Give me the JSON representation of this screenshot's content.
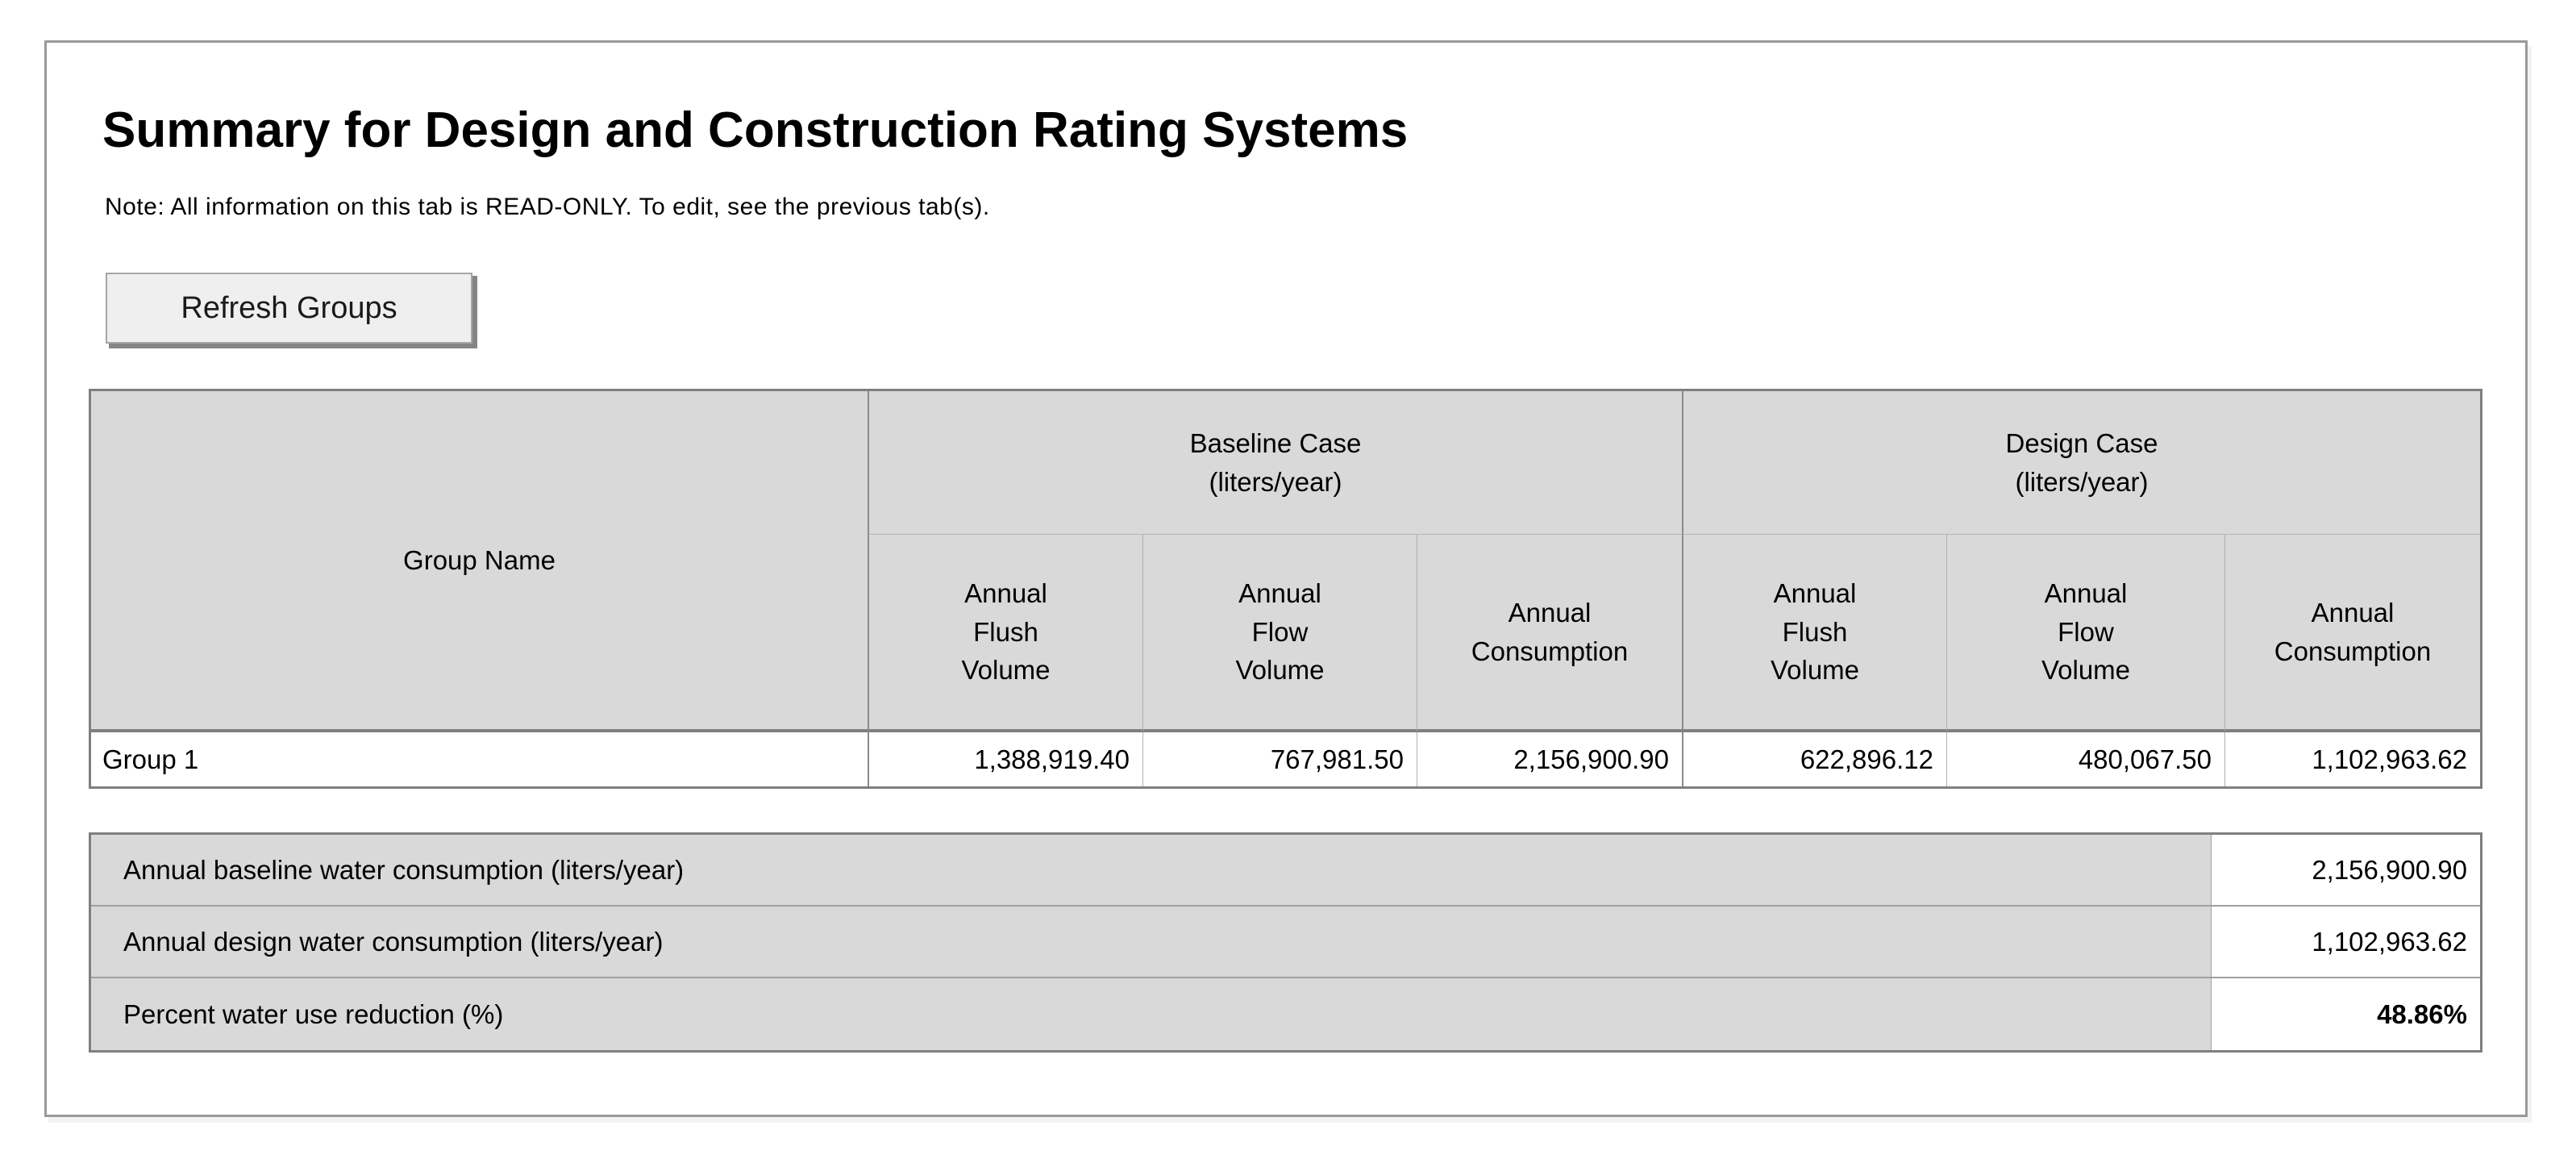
{
  "page": {
    "title": "Summary for Design and Construction Rating Systems",
    "note": "Note: All information on this tab is READ-ONLY. To edit, see the previous tab(s).",
    "refresh_button_label": "Refresh Groups"
  },
  "main_table": {
    "corner_header": "Group Name",
    "baseline_group": {
      "title": "Baseline Case\n(liters/year)",
      "columns": [
        "Annual\nFlush\nVolume",
        "Annual\nFlow\nVolume",
        "Annual\nConsumption"
      ]
    },
    "design_group": {
      "title": "Design Case\n(liters/year)",
      "columns": [
        "Annual\nFlush\nVolume",
        "Annual\nFlow\nVolume",
        "Annual\nConsumption"
      ]
    },
    "rows": [
      {
        "group_name": "Group 1",
        "baseline": {
          "annual_flush_volume": "1,388,919.40",
          "annual_flow_volume": "767,981.50",
          "annual_consumption": "2,156,900.90"
        },
        "design": {
          "annual_flush_volume": "622,896.12",
          "annual_flow_volume": "480,067.50",
          "annual_consumption": "1,102,963.62"
        }
      }
    ]
  },
  "summary_table": {
    "rows": [
      {
        "label": "Annual baseline water consumption (liters/year)",
        "value": "2,156,900.90"
      },
      {
        "label": "Annual design water consumption (liters/year)",
        "value": "1,102,963.62"
      },
      {
        "label": "Percent water use reduction (%)",
        "value": "48.86%"
      }
    ]
  },
  "colors": {
    "header_fill": "#d9d9d9",
    "border_dark": "#7f7f7f",
    "border_light": "#b0b0b0",
    "button_face": "#efefef"
  }
}
